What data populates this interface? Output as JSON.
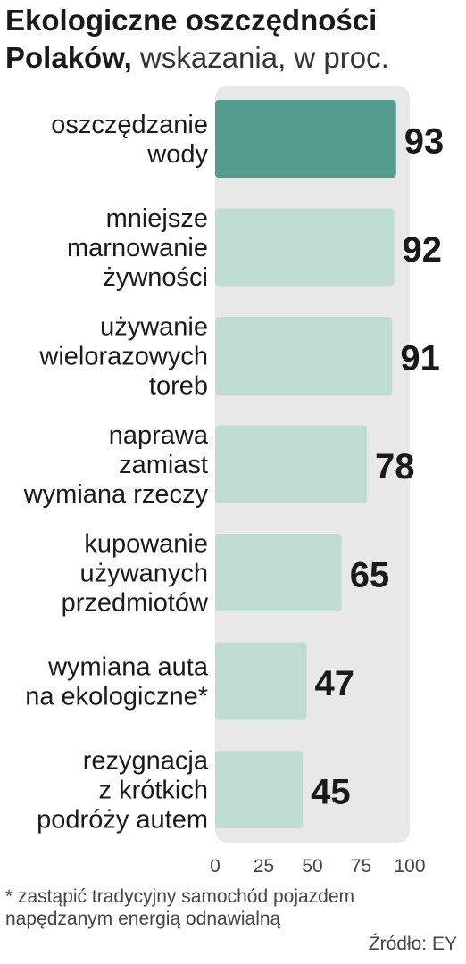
{
  "header": {
    "title_bold": "Ekologiczne oszczędności Polaków,",
    "title_light": "wskazania, w proc."
  },
  "chart_data": {
    "type": "bar",
    "orientation": "horizontal",
    "categories": [
      [
        "oszczędzanie",
        "wody"
      ],
      [
        "mniejsze",
        "marnowanie",
        "żywności"
      ],
      [
        "używanie",
        "wielorazowych",
        "toreb"
      ],
      [
        "naprawa",
        "zamiast",
        "wymiana rzeczy"
      ],
      [
        "kupowanie",
        "używanych",
        "przedmiotów"
      ],
      [
        "wymiana auta",
        "na ekologiczne*"
      ],
      [
        "rezygnacja",
        "z krótkich",
        "podróży autem"
      ]
    ],
    "values": [
      93,
      92,
      91,
      78,
      65,
      47,
      45
    ],
    "xlim": [
      0,
      100
    ],
    "xticks": [
      0,
      25,
      50,
      75,
      100
    ],
    "colors": {
      "highlight": "#529b8e",
      "bar": "#bfdcd3",
      "plot_bg": "#e8e8e8"
    },
    "highlight_index": 0
  },
  "footnote": "* zastąpić tradycyjny samochód pojazdem napędzanym energią odnawialną",
  "source": "Źródło: EY"
}
